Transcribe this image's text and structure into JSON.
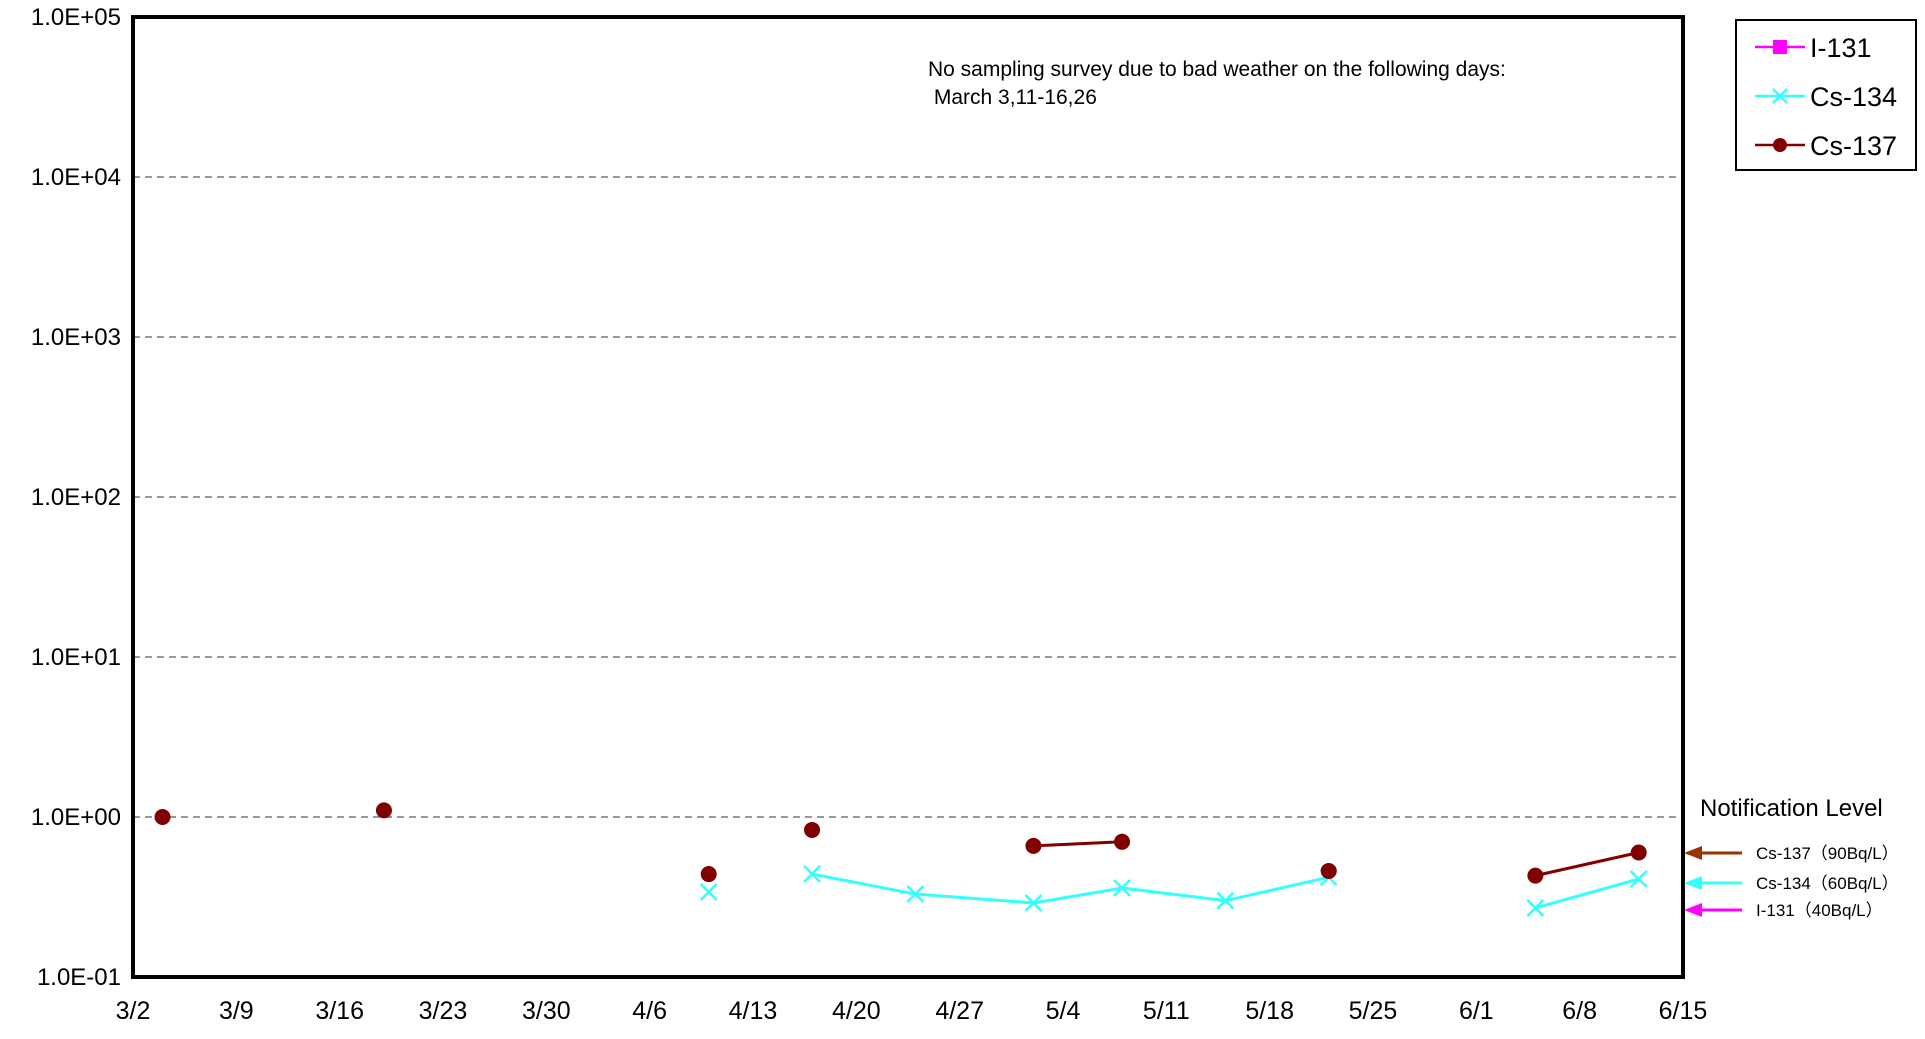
{
  "chart_data": {
    "type": "line",
    "y_scale": "log",
    "ylim": [
      0.1,
      100000
    ],
    "y_tick_labels": [
      "1.0E-01",
      "1.0E+00",
      "1.0E+01",
      "1.0E+02",
      "1.0E+03",
      "1.0E+04",
      "1.0E+05"
    ],
    "y_tick_values": [
      0.1,
      1,
      10,
      100,
      1000,
      10000,
      100000
    ],
    "x_range": [
      "03-02",
      "06-15"
    ],
    "x_tick_labels": [
      "3/2",
      "3/9",
      "3/16",
      "3/23",
      "3/30",
      "4/6",
      "4/13",
      "4/20",
      "4/27",
      "5/4",
      "5/11",
      "5/18",
      "5/25",
      "6/1",
      "6/8",
      "6/15"
    ],
    "x_tick_dates": [
      "03-02",
      "03-09",
      "03-16",
      "03-23",
      "03-30",
      "04-06",
      "04-13",
      "04-20",
      "04-27",
      "05-04",
      "05-11",
      "05-18",
      "05-25",
      "06-01",
      "06-08",
      "06-15"
    ],
    "grid": "horizontal dashed",
    "legend_position": "top-right, outside plot",
    "annotation": {
      "line1": "No sampling survey due to bad weather on the following days:",
      "line2": " March 3,11-16,26"
    },
    "notification": {
      "title": "Notification Level",
      "levels": [
        {
          "label": "Cs-137（90Bq/L）",
          "color": "#993300"
        },
        {
          "label": "Cs-134（60Bq/L）",
          "color": "#33ffff"
        },
        {
          "label": "I-131（40Bq/L）",
          "color": "#ff00ff"
        }
      ]
    },
    "series": [
      {
        "name": "I-131",
        "color": "#ff00ff",
        "marker": "square",
        "points": []
      },
      {
        "name": "Cs-134",
        "color": "#33ffff",
        "marker": "x",
        "points": [
          {
            "x": "04-10",
            "y": 0.34
          },
          {
            "x": "04-17",
            "y": 0.44,
            "segment_start": true
          },
          {
            "x": "04-24",
            "y": 0.33
          },
          {
            "x": "05-02",
            "y": 0.29
          },
          {
            "x": "05-08",
            "y": 0.36
          },
          {
            "x": "05-15",
            "y": 0.3
          },
          {
            "x": "05-22",
            "y": 0.42
          },
          {
            "x": "06-05",
            "y": 0.27,
            "segment_start": true
          },
          {
            "x": "06-12",
            "y": 0.41
          }
        ]
      },
      {
        "name": "Cs-137",
        "color": "#800000",
        "marker": "circle",
        "points": [
          {
            "x": "03-04",
            "y": 1.0
          },
          {
            "x": "03-19",
            "y": 1.1,
            "segment_start": true
          },
          {
            "x": "04-10",
            "y": 0.44,
            "segment_start": true
          },
          {
            "x": "04-17",
            "y": 0.83,
            "segment_start": true
          },
          {
            "x": "05-02",
            "y": 0.66,
            "segment_start": true
          },
          {
            "x": "05-08",
            "y": 0.7
          },
          {
            "x": "05-22",
            "y": 0.46,
            "segment_start": true
          },
          {
            "x": "06-05",
            "y": 0.43,
            "segment_start": true
          },
          {
            "x": "06-12",
            "y": 0.6
          }
        ]
      }
    ]
  }
}
